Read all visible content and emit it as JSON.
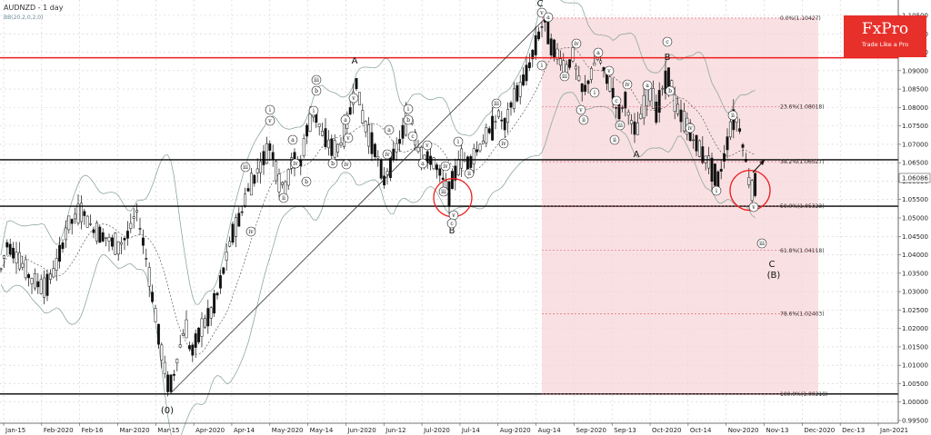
{
  "chart_data": {
    "type": "candlestick",
    "title": "AUDNZD - 1 day",
    "indicator": "BB(20,2,0,2,0)",
    "ylim": [
      0.995,
      1.105
    ],
    "x_labels": [
      "Jan-15",
      "Feb-2020",
      "Feb-16",
      "Mar-2020",
      "Mar-15",
      "Apr-2020",
      "Apr-14",
      "May-2020",
      "May-14",
      "Jun-2020",
      "Jun-12",
      "Jul-2020",
      "Jul-14",
      "Aug-2020",
      "Aug-14",
      "Sep-2020",
      "Sep-13",
      "Oct-2020",
      "Oct-14",
      "Nov-2020",
      "Nov-13",
      "Dec-2020",
      "Dec-13",
      "Jan-2021"
    ],
    "y_ticks": [
      "1.10500",
      "1.10000",
      "1.09500",
      "1.09000",
      "1.08500",
      "1.08000",
      "1.07500",
      "1.07000",
      "1.06500",
      "1.06000",
      "1.05500",
      "1.05000",
      "1.04500",
      "1.04000",
      "1.03500",
      "1.03000",
      "1.02500",
      "1.02000",
      "1.01500",
      "1.01000",
      "1.00500",
      "1.00000",
      "0.99500"
    ],
    "current_price": "1.06086",
    "horizontal_levels": [
      {
        "price": 1.0935,
        "color": "#ee1c1c"
      },
      {
        "price": 1.0658,
        "color": "#000000"
      },
      {
        "price": 1.0532,
        "color": "#000000"
      },
      {
        "price": 1.0022,
        "color": "#000000"
      }
    ],
    "fib_levels": [
      {
        "label": "0.0%(1.10427)",
        "price": 1.10427
      },
      {
        "label": "23.6%(1.08018)",
        "price": 1.08018
      },
      {
        "label": "38.2%(1.06527)",
        "price": 1.06527
      },
      {
        "label": "50.0%(1.05323)",
        "price": 1.05323
      },
      {
        "label": "61.8%(1.04118)",
        "price": 1.04118
      },
      {
        "label": "78.6%(1.02403)",
        "price": 1.02403
      },
      {
        "label": "100.0%(1.00218)",
        "price": 1.00218
      }
    ],
    "wave_labels": [
      "A",
      "C",
      "B",
      "A",
      "(0)",
      "B",
      "C",
      "(B)",
      "i",
      "ii",
      "iii",
      "iv",
      "v",
      "a",
      "b",
      "c"
    ],
    "candle_path": [
      [
        0,
        1.035
      ],
      [
        8,
        1.043
      ],
      [
        20,
        1.039
      ],
      [
        35,
        1.033
      ],
      [
        50,
        1.031
      ],
      [
        62,
        1.037
      ],
      [
        75,
        1.048
      ],
      [
        90,
        1.052
      ],
      [
        102,
        1.047
      ],
      [
        115,
        1.045
      ],
      [
        130,
        1.042
      ],
      [
        142,
        1.046
      ],
      [
        150,
        1.052
      ],
      [
        158,
        1.043
      ],
      [
        165,
        1.033
      ],
      [
        172,
        1.022
      ],
      [
        180,
        1.01
      ],
      [
        186,
        1.004
      ],
      [
        190,
        1.006
      ],
      [
        196,
        1.013
      ],
      [
        204,
        1.021
      ],
      [
        210,
        1.013
      ],
      [
        218,
        1.018
      ],
      [
        226,
        1.022
      ],
      [
        232,
        1.024
      ],
      [
        240,
        1.03
      ],
      [
        248,
        1.038
      ],
      [
        256,
        1.046
      ],
      [
        264,
        1.05
      ],
      [
        272,
        1.057
      ],
      [
        280,
        1.061
      ],
      [
        290,
        1.066
      ],
      [
        298,
        1.07
      ],
      [
        306,
        1.06
      ],
      [
        314,
        1.058
      ],
      [
        322,
        1.066
      ],
      [
        330,
        1.064
      ],
      [
        338,
        1.074
      ],
      [
        346,
        1.079
      ],
      [
        354,
        1.073
      ],
      [
        362,
        1.07
      ],
      [
        370,
        1.068
      ],
      [
        378,
        1.072
      ],
      [
        386,
        1.08
      ],
      [
        392,
        1.087
      ],
      [
        398,
        1.078
      ],
      [
        406,
        1.072
      ],
      [
        414,
        1.068
      ],
      [
        422,
        1.06
      ],
      [
        430,
        1.065
      ],
      [
        438,
        1.07
      ],
      [
        446,
        1.075
      ],
      [
        452,
        1.078
      ],
      [
        458,
        1.07
      ],
      [
        466,
        1.066
      ],
      [
        474,
        1.066
      ],
      [
        482,
        1.063
      ],
      [
        488,
        1.06
      ],
      [
        494,
        1.057
      ],
      [
        500,
        1.062
      ],
      [
        508,
        1.066
      ],
      [
        516,
        1.065
      ],
      [
        524,
        1.068
      ],
      [
        532,
        1.071
      ],
      [
        540,
        1.074
      ],
      [
        548,
        1.078
      ],
      [
        556,
        1.075
      ],
      [
        564,
        1.082
      ],
      [
        572,
        1.085
      ],
      [
        580,
        1.09
      ],
      [
        588,
        1.096
      ],
      [
        594,
        1.101
      ],
      [
        600,
        1.104
      ],
      [
        606,
        1.097
      ],
      [
        614,
        1.094
      ],
      [
        622,
        1.09
      ],
      [
        630,
        1.094
      ],
      [
        636,
        1.088
      ],
      [
        642,
        1.084
      ],
      [
        650,
        1.089
      ],
      [
        658,
        1.094
      ],
      [
        664,
        1.09
      ],
      [
        672,
        1.086
      ],
      [
        680,
        1.078
      ],
      [
        688,
        1.082
      ],
      [
        694,
        1.076
      ],
      [
        700,
        1.073
      ],
      [
        708,
        1.08
      ],
      [
        716,
        1.085
      ],
      [
        722,
        1.079
      ],
      [
        730,
        1.086
      ],
      [
        736,
        1.089
      ],
      [
        742,
        1.081
      ],
      [
        750,
        1.077
      ],
      [
        758,
        1.074
      ],
      [
        766,
        1.07
      ],
      [
        774,
        1.067
      ],
      [
        782,
        1.064
      ],
      [
        790,
        1.06
      ],
      [
        796,
        1.066
      ],
      [
        802,
        1.073
      ],
      [
        808,
        1.078
      ],
      [
        814,
        1.074
      ],
      [
        820,
        1.066
      ],
      [
        826,
        1.057
      ],
      [
        832,
        1.06
      ]
    ]
  },
  "watermark": {
    "brand": "FxPro",
    "tagline": "Trade Like a Pro"
  },
  "colors": {
    "fib_zone": "#f7d5d8",
    "candles": "#111111",
    "bands": "#8fa8a0",
    "marker_circle": "#ee1c1c"
  }
}
